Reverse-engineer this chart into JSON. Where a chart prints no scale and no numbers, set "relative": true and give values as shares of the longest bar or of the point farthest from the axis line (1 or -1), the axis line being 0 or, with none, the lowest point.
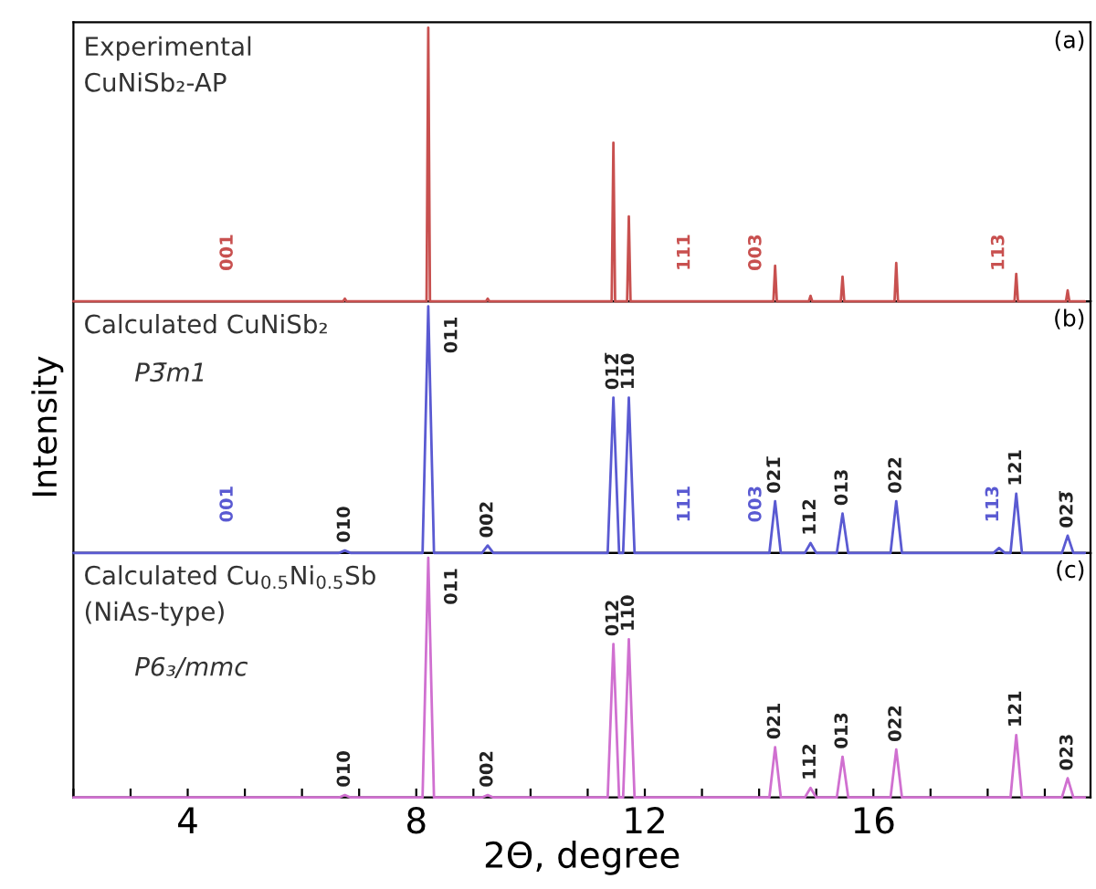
{
  "chart_data": [
    {
      "type": "line",
      "relative": true,
      "title": "Experimental\nCuNiSb₂-AP",
      "tick_labels": false,
      "xlim": [
        2,
        19.8
      ],
      "grid": false,
      "series": [
        {
          "color": "#c8504f",
          "x": [
            2,
            6.72,
            6.75,
            6.78,
            8.18,
            8.21,
            8.24,
            9.22,
            9.25,
            9.28,
            11.42,
            11.45,
            11.48,
            11.69,
            11.72,
            11.75,
            14.25,
            14.28,
            14.31,
            14.87,
            14.9,
            14.93,
            15.43,
            15.46,
            15.49,
            16.37,
            16.4,
            16.43,
            18.47,
            18.5,
            18.53,
            19.37,
            19.4,
            19.43,
            19.7
          ],
          "values": [
            0,
            0,
            0.01,
            0,
            0,
            1,
            0,
            0,
            0.01,
            0,
            0,
            0.58,
            0,
            0,
            0.31,
            0,
            0,
            0.13,
            0,
            0,
            0.02,
            0,
            0,
            0.09,
            0,
            0,
            0.14,
            0,
            0,
            0.1,
            0,
            0,
            0.04,
            0,
            0
          ]
        }
      ],
      "annotations": [
        "(a)",
        {
          "text": "001",
          "x": 4.7,
          "y": 0
        },
        {
          "text": "111",
          "x": 12.7,
          "y": 0
        },
        {
          "text": "003",
          "x": 13.95,
          "y": 0
        },
        {
          "text": "113",
          "x": 18.2,
          "y": 0
        }
      ]
    },
    {
      "type": "line",
      "relative": true,
      "title": "Calculated CuNiSb₂",
      "subtitle": "P3̄m1",
      "ylabel": "Intensity",
      "tick_labels": false,
      "xlim": [
        2,
        19.8
      ],
      "grid": false,
      "series": [
        {
          "color": "#5a5ad2",
          "x": [
            2,
            6.65,
            6.75,
            6.85,
            8.11,
            8.21,
            8.31,
            9.15,
            9.25,
            9.35,
            11.35,
            11.45,
            11.55,
            11.62,
            11.72,
            11.82,
            14.18,
            14.28,
            14.38,
            14.8,
            14.9,
            15.0,
            15.36,
            15.46,
            15.56,
            16.3,
            16.4,
            16.5,
            18.1,
            18.2,
            18.3,
            18.4,
            18.5,
            18.6,
            19.3,
            19.4,
            19.5,
            19.7
          ],
          "values": [
            0,
            0,
            0.01,
            0,
            0,
            1,
            0,
            0,
            0.03,
            0,
            0,
            0.63,
            0,
            0,
            0.63,
            0,
            0,
            0.21,
            0,
            0,
            0.04,
            0,
            0,
            0.16,
            0,
            0,
            0.21,
            0,
            0,
            0.02,
            0,
            0,
            0.24,
            0,
            0,
            0.07,
            0,
            0
          ]
        }
      ],
      "annotations": [
        "(b)",
        {
          "text": "001",
          "x": 4.7,
          "y": 0
        },
        {
          "text": "010",
          "x": 6.75,
          "y": 0.01
        },
        {
          "text": "011",
          "x": 8.21,
          "y": 1
        },
        {
          "text": "002",
          "x": 9.25,
          "y": 0.03
        },
        {
          "text": "012̅",
          "x": 11.45,
          "y": 0.63
        },
        {
          "text": "110",
          "x": 11.72,
          "y": 0.63
        },
        {
          "text": "111",
          "x": 12.7,
          "y": 0
        },
        {
          "text": "003",
          "x": 13.95,
          "y": 0
        },
        {
          "text": "021̅",
          "x": 14.28,
          "y": 0.21
        },
        {
          "text": "112",
          "x": 14.9,
          "y": 0.04
        },
        {
          "text": "013",
          "x": 15.46,
          "y": 0.16
        },
        {
          "text": "022",
          "x": 16.4,
          "y": 0.21
        },
        {
          "text": "113",
          "x": 18.1,
          "y": 0
        },
        {
          "text": "121",
          "x": 18.5,
          "y": 0.24
        },
        {
          "text": "023̅",
          "x": 19.4,
          "y": 0.07
        }
      ]
    },
    {
      "type": "line",
      "relative": true,
      "title": "Calculated Cu$_{0.5}$Ni$_{0.5}$Sb\n(NiAs-type)",
      "subtitle": "P6₃/mmc",
      "xlabel": "2Θ, degree",
      "tick_labels": "x",
      "xlim": [
        2,
        19.8
      ],
      "grid": false,
      "xticks": [
        {
          "value": 2,
          "label": null
        },
        {
          "value": 3,
          "label": null
        },
        4,
        {
          "value": 5,
          "label": null
        },
        {
          "value": 6,
          "label": null
        },
        {
          "value": 7,
          "label": null
        },
        8,
        {
          "value": 9,
          "label": null
        },
        {
          "value": 10,
          "label": null
        },
        {
          "value": 11,
          "label": null
        },
        12,
        {
          "value": 13,
          "label": null
        },
        {
          "value": 14,
          "label": null
        },
        {
          "value": 15,
          "label": null
        },
        16,
        {
          "value": 17,
          "label": null
        },
        {
          "value": 18,
          "label": null
        },
        {
          "value": 19,
          "label": null
        }
      ],
      "series": [
        {
          "color": "#d070d0",
          "x": [
            2,
            6.65,
            6.75,
            6.85,
            8.11,
            8.21,
            8.31,
            9.15,
            9.25,
            9.35,
            11.35,
            11.45,
            11.55,
            11.62,
            11.72,
            11.82,
            14.18,
            14.28,
            14.38,
            14.8,
            14.9,
            15.0,
            15.36,
            15.46,
            15.56,
            16.3,
            16.4,
            16.5,
            18.4,
            18.5,
            18.6,
            19.3,
            19.4,
            19.5,
            19.7
          ],
          "values": [
            0,
            0,
            0.01,
            0,
            0,
            1,
            0,
            0,
            0.01,
            0,
            0,
            0.64,
            0,
            0,
            0.66,
            0,
            0,
            0.21,
            0,
            0,
            0.04,
            0,
            0,
            0.17,
            0,
            0,
            0.2,
            0,
            0,
            0.26,
            0,
            0,
            0.08,
            0,
            0
          ]
        }
      ],
      "annotations": [
        "(c)",
        {
          "text": "010",
          "x": 6.75,
          "y": 0.01
        },
        {
          "text": "011",
          "x": 8.21,
          "y": 1
        },
        {
          "text": "002",
          "x": 9.25,
          "y": 0.01
        },
        {
          "text": "012",
          "x": 11.45,
          "y": 0.64
        },
        {
          "text": "110",
          "x": 11.72,
          "y": 0.66
        },
        {
          "text": "021",
          "x": 14.28,
          "y": 0.21
        },
        {
          "text": "112",
          "x": 14.9,
          "y": 0.04
        },
        {
          "text": "013",
          "x": 15.46,
          "y": 0.17
        },
        {
          "text": "022",
          "x": 16.4,
          "y": 0.2
        },
        {
          "text": "121",
          "x": 18.5,
          "y": 0.26
        },
        {
          "text": "023",
          "x": 19.4,
          "y": 0.08
        }
      ]
    }
  ]
}
